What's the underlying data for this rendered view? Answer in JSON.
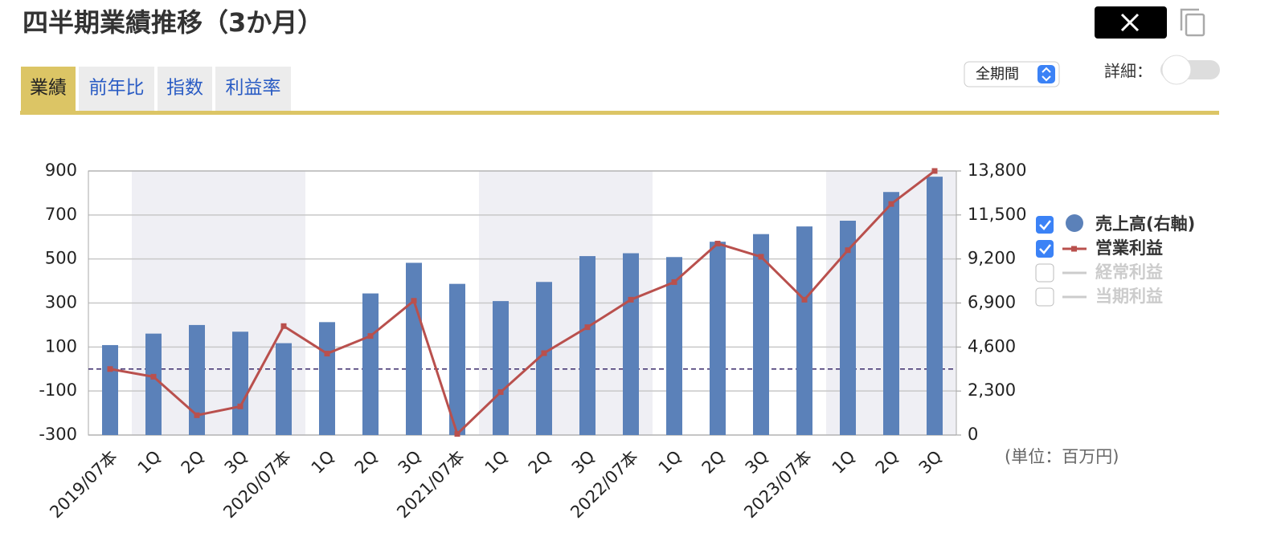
{
  "header": {
    "title": "四半期業績推移（3か月）"
  },
  "tabs": [
    "業績",
    "前年比",
    "指数",
    "利益率"
  ],
  "period_select": "全期間",
  "detail_label": "詳細：",
  "chart_data": {
    "type": "bar_line",
    "categories": [
      "2019/07本",
      "1Q",
      "2Q",
      "3Q",
      "2020/07本",
      "1Q",
      "2Q",
      "3Q",
      "2021/07本",
      "1Q",
      "2Q",
      "3Q",
      "2022/07本",
      "1Q",
      "2Q",
      "3Q",
      "2023/07本",
      "1Q",
      "2Q",
      "3Q"
    ],
    "series": [
      {
        "name": "売上高(右軸)",
        "type": "bar",
        "axis": "y2",
        "color": "#5b81b9",
        "checked": true,
        "values": [
          4700,
          5300,
          5750,
          5400,
          4800,
          5900,
          7400,
          9000,
          7900,
          7000,
          8000,
          9350,
          9500,
          9300,
          10100,
          10500,
          10900,
          11200,
          12700,
          13500
        ]
      },
      {
        "name": "営業利益",
        "type": "line",
        "axis": "y",
        "color": "#b9504d",
        "checked": true,
        "values": [
          0,
          -35,
          -210,
          -170,
          195,
          70,
          150,
          310,
          -295,
          -105,
          72,
          190,
          315,
          395,
          570,
          510,
          315,
          540,
          750,
          900
        ]
      }
    ],
    "inactive_legend": [
      {
        "name": "経常利益",
        "checked": false
      },
      {
        "name": "当期利益",
        "checked": false
      }
    ],
    "ylim": [
      -300,
      900
    ],
    "yticks": [
      -300,
      -100,
      100,
      300,
      500,
      700,
      900
    ],
    "y2lim": [
      0,
      13800
    ],
    "y2ticks": [
      0,
      {
        "value": 2300,
        "label": "2,300"
      },
      {
        "value": 4600,
        "label": "4,600"
      },
      {
        "value": 6900,
        "label": "6,900"
      },
      {
        "value": 9200,
        "label": "9,200"
      },
      {
        "value": 11500,
        "label": "11,500"
      },
      {
        "value": 13800,
        "label": "13,800"
      }
    ],
    "grid": true,
    "zero_line": true,
    "legend": "right",
    "unit_note": "(単位：百万円)"
  }
}
